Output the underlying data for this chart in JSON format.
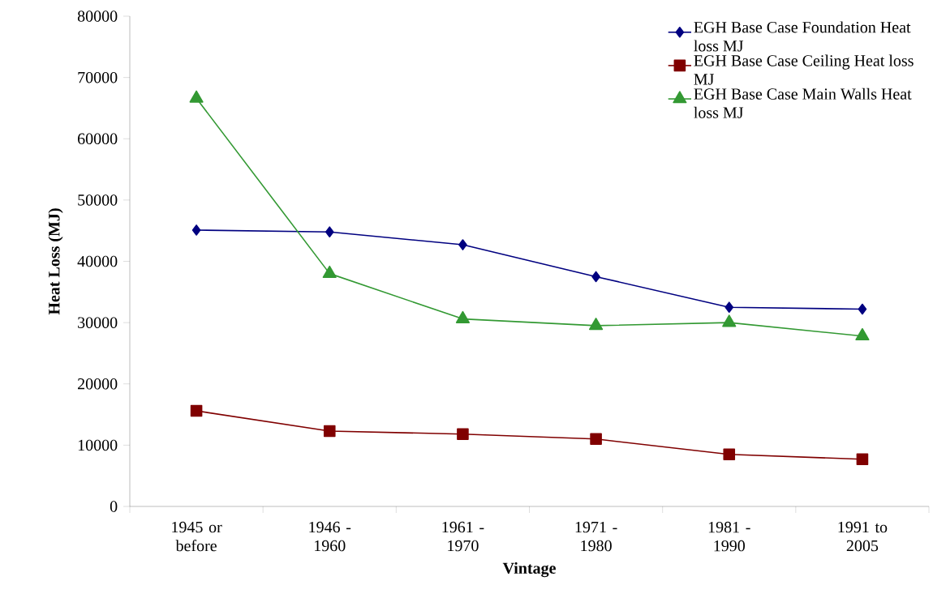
{
  "chart_data": {
    "type": "line",
    "xlabel": "Vintage",
    "ylabel": "Heat Loss (MJ)",
    "categories": [
      "1945 or before",
      "1946 - 1960",
      "1961 - 1970",
      "1971 - 1980",
      "1981 - 1990",
      "1991 to 2005"
    ],
    "series": [
      {
        "name": "EGH Base Case Foundation Heat loss MJ",
        "color": "#000080",
        "marker": "diamond",
        "values": [
          45100,
          44800,
          42700,
          37500,
          32500,
          32200
        ]
      },
      {
        "name": "EGH Base Case Ceiling Heat loss MJ",
        "color": "#800000",
        "marker": "square",
        "values": [
          15600,
          12300,
          11800,
          11000,
          8500,
          7700
        ]
      },
      {
        "name": "EGH Base Case Main Walls Heat loss MJ",
        "color": "#339933",
        "marker": "triangle",
        "values": [
          66600,
          38000,
          30600,
          29500,
          30000,
          27800
        ]
      }
    ],
    "ylim": [
      0,
      80000
    ],
    "yticks": [
      0,
      10000,
      20000,
      30000,
      40000,
      50000,
      60000,
      70000,
      80000
    ],
    "legend": "top right",
    "line_style": "solid"
  }
}
